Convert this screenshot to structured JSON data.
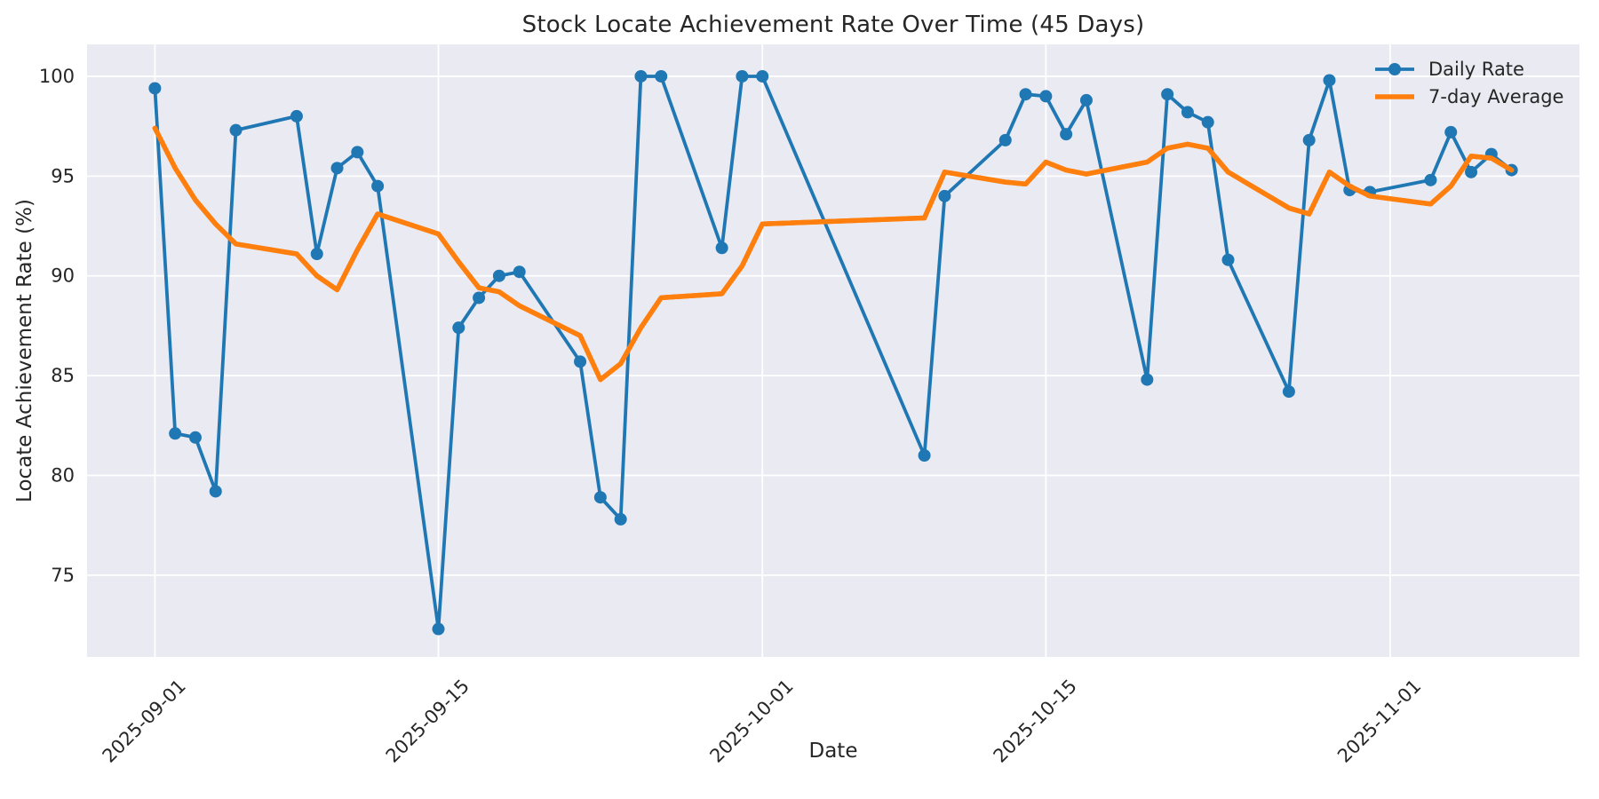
{
  "colors": {
    "figure_background": "#ffffff",
    "plot_background": "#eaeaf2",
    "grid": "#ffffff",
    "text": "#262626"
  },
  "chart_data": {
    "type": "line",
    "title": "Stock Locate Achievement Rate Over Time (45 Days)",
    "xlabel": "Date",
    "ylabel": "Locate Achievement Rate (%)",
    "grid": true,
    "legend_position": "upper right",
    "ylim": [
      70.9,
      101.6
    ],
    "y_ticks": [
      75,
      80,
      85,
      90,
      95,
      100
    ],
    "x_tick_labels": [
      "2025-09-01",
      "2025-09-15",
      "2025-10-01",
      "2025-10-15",
      "2025-11-01"
    ],
    "x_tick_rotation_deg": 45,
    "dates": [
      "2025-09-01",
      "2025-09-02",
      "2025-09-03",
      "2025-09-04",
      "2025-09-05",
      "2025-09-08",
      "2025-09-09",
      "2025-09-10",
      "2025-09-11",
      "2025-09-12",
      "2025-09-15",
      "2025-09-16",
      "2025-09-17",
      "2025-09-18",
      "2025-09-19",
      "2025-09-22",
      "2025-09-23",
      "2025-09-24",
      "2025-09-25",
      "2025-09-26",
      "2025-09-29",
      "2025-09-30",
      "2025-10-01",
      "2025-10-09",
      "2025-10-10",
      "2025-10-13",
      "2025-10-14",
      "2025-10-15",
      "2025-10-16",
      "2025-10-17",
      "2025-10-20",
      "2025-10-21",
      "2025-10-22",
      "2025-10-23",
      "2025-10-24",
      "2025-10-27",
      "2025-10-28",
      "2025-10-29",
      "2025-10-30",
      "2025-10-31",
      "2025-11-03",
      "2025-11-04",
      "2025-11-05",
      "2025-11-06",
      "2025-11-07"
    ],
    "series": [
      {
        "name": "Daily Rate",
        "color": "#1f77b4",
        "marker": "circle",
        "line_width": 3.8,
        "values": [
          99.4,
          82.1,
          81.9,
          79.2,
          97.3,
          98.0,
          91.1,
          95.4,
          96.2,
          94.5,
          72.3,
          87.4,
          88.9,
          90.0,
          90.2,
          85.7,
          78.9,
          77.8,
          100.0,
          100.0,
          91.4,
          100.0,
          100.0,
          81.0,
          94.0,
          96.8,
          99.1,
          99.0,
          97.1,
          98.8,
          84.8,
          99.1,
          98.2,
          97.7,
          90.8,
          84.2,
          96.8,
          99.8,
          94.3,
          94.2,
          94.8,
          97.2,
          95.2,
          96.1,
          95.3
        ]
      },
      {
        "name": "7-day Average",
        "color": "#ff7f0e",
        "marker": null,
        "line_width": 5.5,
        "values": [
          97.4,
          95.4,
          93.8,
          92.6,
          91.6,
          91.1,
          90.0,
          89.3,
          91.3,
          93.1,
          92.1,
          90.7,
          89.4,
          89.2,
          88.5,
          87.0,
          84.8,
          85.6,
          87.4,
          88.9,
          89.1,
          90.5,
          92.6,
          92.9,
          95.2,
          94.7,
          94.6,
          95.7,
          95.3,
          95.1,
          95.7,
          96.4,
          96.6,
          96.4,
          95.2,
          93.4,
          93.1,
          95.2,
          94.5,
          94.0,
          93.6,
          94.5,
          96.0,
          95.9,
          95.3
        ]
      }
    ]
  }
}
